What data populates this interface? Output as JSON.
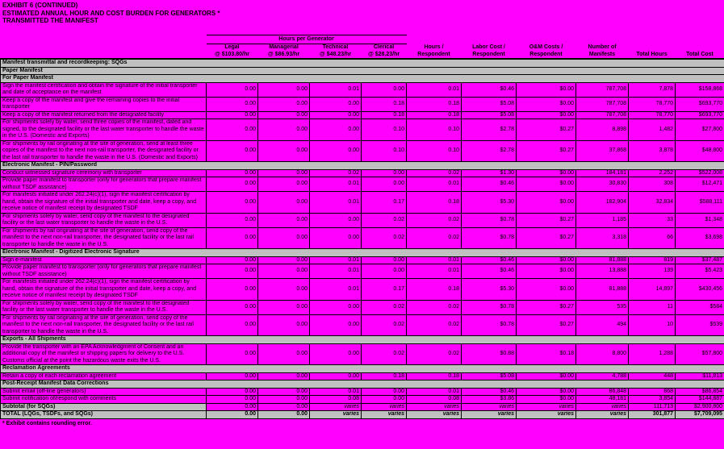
{
  "page": {
    "background_color": "#FF00FF",
    "section_band_color": "#C0C0C0",
    "grid_color": "#000000"
  },
  "title": {
    "line1": "EXHIBIT 6 (CONTINUED)",
    "line2": "ESTIMATED ANNUAL HOUR AND COST BURDEN FOR GENERATORS *",
    "line3": "TRANSMITTED THE MANIFEST"
  },
  "table": {
    "group_header": "Hours per Generator",
    "columns": [
      {
        "line1": "Legal",
        "line2": "@ $103.80/hr"
      },
      {
        "line1": "Managerial",
        "line2": "@ $86.93/hr"
      },
      {
        "line1": "Technical",
        "line2": "@ $48.23/hr"
      },
      {
        "line1": "Clerical",
        "line2": "@ $28.23/hr"
      },
      {
        "line1": "Hours /",
        "line2": "Respondent"
      },
      {
        "line1": "Labor Cost /",
        "line2": "Respondent"
      },
      {
        "line1": "O&M Costs /",
        "line2": "Respondent"
      },
      {
        "line1": "Number of",
        "line2": "Manifests"
      },
      {
        "line1": "Total Hours",
        "line2": ""
      },
      {
        "line1": "Total Cost",
        "line2": ""
      }
    ],
    "rows": [
      {
        "t": "s",
        "label": "Manifest transmittal and recordkeeping:  SQGs"
      },
      {
        "t": "s",
        "label": "Paper Manifest"
      },
      {
        "t": "s",
        "label": "For Paper Manifest"
      },
      {
        "t": "d",
        "label": "Sign the manifest certification and obtain the signature of the initial transporter and date of acceptance on the manifest",
        "v": [
          "0.00",
          "0.00",
          "0.01",
          "0.00",
          "0.01",
          "$0.46",
          "$0.00",
          "787,708",
          "7,878",
          "$158,868"
        ]
      },
      {
        "t": "d",
        "label": "Keep a copy of the manifest and give the remaining copies to the initial transporter",
        "v": [
          "0.00",
          "0.00",
          "0.00",
          "0.18",
          "0.18",
          "$5.08",
          "$0.00",
          "787,708",
          "78,770",
          "$693,770"
        ]
      },
      {
        "t": "d",
        "label": "Keep a copy of the manifest returned from the designated facility",
        "v": [
          "0.00",
          "0.00",
          "0.00",
          "0.18",
          "0.18",
          "$5.08",
          "$0.00",
          "787,708",
          "78,770",
          "$693,770"
        ]
      },
      {
        "t": "d",
        "label": "For shipments solely by water, send three copies of the manifest, dated and signed, to the designated facility or the last water transporter to handle the waste in the U.S. (Domestic and Exports)",
        "v": [
          "0.00",
          "0.00",
          "0.00",
          "0.10",
          "0.10",
          "$2.78",
          "$0.27",
          "8,898",
          "1,482",
          "$27,800"
        ]
      },
      {
        "t": "d",
        "label": "For shipments by rail originating at the site of generation, send at least three copies of the manifest to the next non-rail transporter, the designated facility or the last rail transporter to handle the waste in the U.S. (Domestic and Exports)",
        "v": [
          "0.00",
          "0.00",
          "0.00",
          "0.10",
          "0.10",
          "$2.78",
          "$0.27",
          "37,868",
          "3,878",
          "$48,800"
        ]
      },
      {
        "t": "s",
        "label": "Electronic Manifest - PIN/Password"
      },
      {
        "t": "d",
        "label": "Conduct witnessed signature ceremony with transporter",
        "v": [
          "0.00",
          "0.00",
          "0.02",
          "0.00",
          "0.02",
          "$1.30",
          "$0.00",
          "184,181",
          "2,252",
          "$522,008"
        ]
      },
      {
        "t": "d",
        "label": "Provide paper manifest to transporter (only for generators that prepare manifest without TSDF assistance)",
        "v": [
          "0.00",
          "0.00",
          "0.01",
          "0.00",
          "0.01",
          "$0.46",
          "$0.00",
          "30,830",
          "308",
          "$12,471"
        ]
      },
      {
        "t": "d",
        "label": "For manifests initiated under 262.24(c)(1), sign the manifest certification by hand, obtain the signature of the initial transporter and date, keep a copy, and receive notice of manifest receipt by designated TSDF",
        "v": [
          "0.00",
          "0.00",
          "0.01",
          "0.17",
          "0.18",
          "$5.30",
          "$0.00",
          "182,904",
          "32,834",
          "$588,111"
        ]
      },
      {
        "t": "d",
        "label": "For shipments solely by water, send copy of the manifest to the designated facility or the last water transporter to handle the waste in the U.S.",
        "v": [
          "0.00",
          "0.00",
          "0.00",
          "0.02",
          "0.02",
          "$0.78",
          "$0.27",
          "1,185",
          "33",
          "$1,348"
        ]
      },
      {
        "t": "d",
        "label": "For shipments by rail originating at the site of generation, send copy of the manifest to the next non-rail transporter, the designated facility or the last rail transporter to handle the waste in the U.S.",
        "v": [
          "0.00",
          "0.00",
          "0.00",
          "0.02",
          "0.02",
          "$0.78",
          "$0.27",
          "3,318",
          "66",
          "$3,698"
        ]
      },
      {
        "t": "s",
        "label": "Electronic Manifest - Digitized Electronic Signature"
      },
      {
        "t": "d",
        "label": "Sign e-manifest",
        "v": [
          "0.00",
          "0.00",
          "0.01",
          "0.00",
          "0.01",
          "$0.46",
          "$0.00",
          "81,888",
          "819",
          "$37,487"
        ]
      },
      {
        "t": "d",
        "label": "Provide paper manifest to transporter (only for generators that prepare manifest without TSDF assistance)",
        "v": [
          "0.00",
          "0.00",
          "0.01",
          "0.00",
          "0.01",
          "$0.46",
          "$0.00",
          "13,888",
          "139",
          "$5,423"
        ]
      },
      {
        "t": "d",
        "label": "For manifests initiated under 262.24(c)(1), sign the manifest certification by hand, obtain the signature of the initial transporter and date, keep a copy, and receive notice of manifest receipt by designated TSDF",
        "v": [
          "0.00",
          "0.00",
          "0.01",
          "0.17",
          "0.18",
          "$5.30",
          "$0.00",
          "81,888",
          "14,897",
          "$430,456"
        ]
      },
      {
        "t": "d",
        "label": "For shipments solely by water, send copy of the manifest to the designated facility or the last water transporter to handle the waste in the U.S.",
        "v": [
          "0.00",
          "0.00",
          "0.00",
          "0.02",
          "0.02",
          "$0.78",
          "$0.27",
          "535",
          "11",
          "$584"
        ]
      },
      {
        "t": "d",
        "label": "For shipments by rail originating at the site of generation, send copy of the manifest to the next non-rail transporter, the designated facility or the last rail transporter to handle the waste in the U.S.",
        "v": [
          "0.00",
          "0.00",
          "0.00",
          "0.02",
          "0.02",
          "$0.78",
          "$0.27",
          "494",
          "10",
          "$539"
        ]
      },
      {
        "t": "s",
        "label": "Exports - All Shipments"
      },
      {
        "t": "d",
        "label": "Provide the transporter with an EPA Acknowledgment of Consent and an additional copy of the manifest or shipping papers for delivery to the U.S. Customs official at the point the hazardous waste exits the U.S.",
        "v": [
          "0.00",
          "0.00",
          "0.00",
          "0.02",
          "0.02",
          "$0.88",
          "$0.18",
          "8,800",
          "1,288",
          "$57,800"
        ]
      },
      {
        "t": "s",
        "label": "Reclamation Agreements"
      },
      {
        "t": "d",
        "label": "Retain a copy of each reclamation agreement",
        "v": [
          "0.00",
          "0.00",
          "0.00",
          "0.18",
          "0.18",
          "$5.08",
          "$0.00",
          "4,788",
          "448",
          "$11,813"
        ]
      },
      {
        "t": "s",
        "label": "Post-Receipt Manifest Data Corrections"
      },
      {
        "t": "d",
        "label": "Submit email (off-line generators)",
        "v": [
          "0.00",
          "0.00",
          "0.01",
          "0.00",
          "0.01",
          "$0.46",
          "$0.00",
          "86,848",
          "868",
          "$86,854"
        ]
      },
      {
        "t": "d",
        "label": "Submit notification of/respond with comments",
        "v": [
          "0.00",
          "0.00",
          "0.08",
          "0.00",
          "0.08",
          "$3.86",
          "$0.00",
          "48,181",
          "3,854",
          "$144,887"
        ]
      },
      {
        "t": "st",
        "label": "Subtotal (for SQGs)",
        "v": [
          "0.00",
          "0.00",
          "varies",
          "varies",
          "varies",
          "varies",
          "varies",
          "varies",
          "111,713",
          "$2,900,800"
        ]
      },
      {
        "t": "tot",
        "label": "TOTAL (LQGs, TSDFs, and SQGs)",
        "v": [
          "0.00",
          "0.00",
          "varies",
          "varies",
          "varies",
          "varies",
          "varies",
          "varies",
          "301,877",
          "$7,709,095"
        ]
      }
    ]
  },
  "footnote": "* Exhibit contains rounding error."
}
